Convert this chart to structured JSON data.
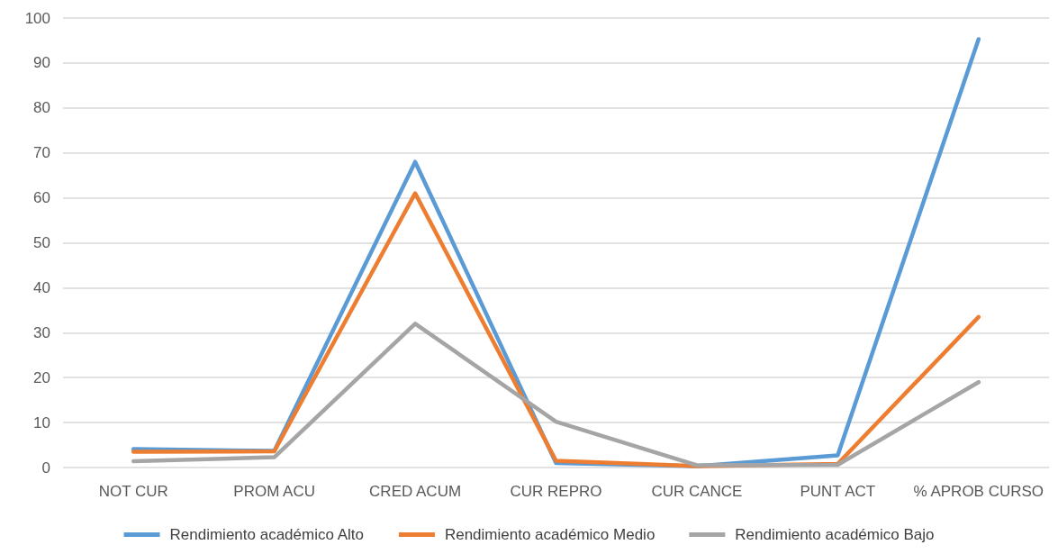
{
  "chart_data": {
    "type": "line",
    "categories": [
      "NOT CUR",
      "PROM ACU",
      "CRED ACUM",
      "CUR REPRO",
      "CUR CANCE",
      "PUNT ACT",
      "% APROB CURSO"
    ],
    "series": [
      {
        "name": "Rendimiento académico Alto",
        "color": "#5b9bd5",
        "values": [
          4.1,
          3.7,
          68,
          1,
          0.3,
          2.7,
          95.3
        ]
      },
      {
        "name": "Rendimiento académico Medio",
        "color": "#ed7d31",
        "values": [
          3.5,
          3.6,
          61,
          1.5,
          0.3,
          0.8,
          33.5
        ]
      },
      {
        "name": "Rendimiento académico Bajo",
        "color": "#a5a5a5",
        "values": [
          1.4,
          2.3,
          32,
          10.2,
          0.5,
          0.6,
          19
        ]
      }
    ],
    "ylim": [
      0,
      100
    ],
    "yticks": [
      0,
      10,
      20,
      30,
      40,
      50,
      60,
      70,
      80,
      90,
      100
    ],
    "grid": "y",
    "legend": "bottom",
    "marker": "none",
    "line_style": "solid"
  }
}
